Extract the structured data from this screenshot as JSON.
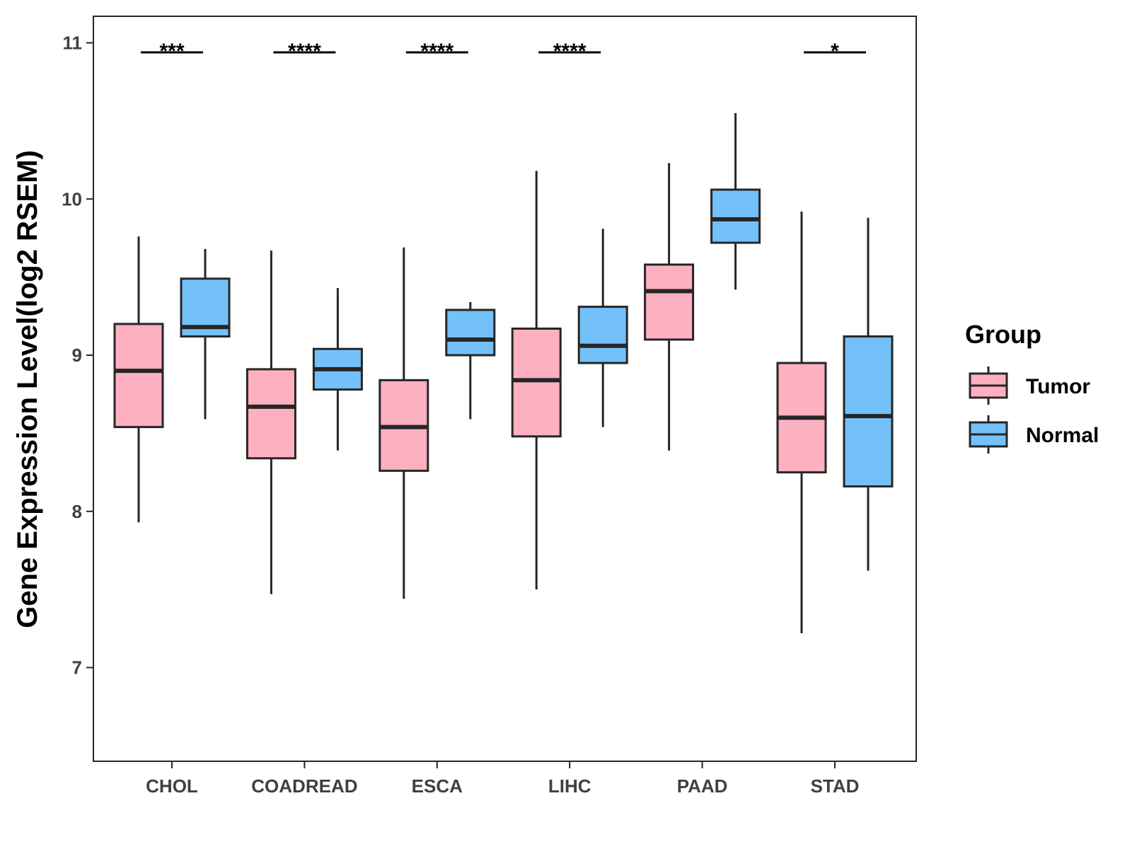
{
  "chart_data": {
    "type": "boxplot",
    "title": "",
    "xlabel": "",
    "ylabel": "Gene Expression Level(log2 RSEM)",
    "ylim": [
      6.4,
      11.17
    ],
    "yticks": [
      7,
      8,
      9,
      10,
      11
    ],
    "categories": [
      "CHOL",
      "COADREAD",
      "ESCA",
      "LIHC",
      "PAAD",
      "STAD"
    ],
    "legend": {
      "title": "Group",
      "position": "right",
      "entries": [
        {
          "name": "Tumor",
          "color": "#FDB0C0"
        },
        {
          "name": "Normal",
          "color": "#74C1F9"
        }
      ]
    },
    "series": [
      {
        "name": "Tumor",
        "color": "#FDB0C0",
        "boxes": [
          {
            "min": 7.93,
            "q1": 8.54,
            "median": 8.9,
            "q3": 9.2,
            "max": 9.76
          },
          {
            "min": 7.47,
            "q1": 8.34,
            "median": 8.67,
            "q3": 8.91,
            "max": 9.67
          },
          {
            "min": 7.44,
            "q1": 8.26,
            "median": 8.54,
            "q3": 8.84,
            "max": 9.69
          },
          {
            "min": 7.5,
            "q1": 8.48,
            "median": 8.84,
            "q3": 9.17,
            "max": 10.18
          },
          {
            "min": 8.39,
            "q1": 9.1,
            "median": 9.41,
            "q3": 9.58,
            "max": 10.23
          },
          {
            "min": 7.22,
            "q1": 8.25,
            "median": 8.6,
            "q3": 8.95,
            "max": 9.92
          }
        ]
      },
      {
        "name": "Normal",
        "color": "#74C1F9",
        "boxes": [
          {
            "min": 8.59,
            "q1": 9.12,
            "median": 9.18,
            "q3": 9.49,
            "max": 9.68
          },
          {
            "min": 8.39,
            "q1": 8.78,
            "median": 8.91,
            "q3": 9.04,
            "max": 9.43
          },
          {
            "min": 8.59,
            "q1": 9.0,
            "median": 9.1,
            "q3": 9.29,
            "max": 9.34
          },
          {
            "min": 8.54,
            "q1": 8.95,
            "median": 9.06,
            "q3": 9.31,
            "max": 9.81
          },
          {
            "min": 9.42,
            "q1": 9.72,
            "median": 9.87,
            "q3": 10.06,
            "max": 10.55
          },
          {
            "min": 7.62,
            "q1": 8.16,
            "median": 8.61,
            "q3": 9.12,
            "max": 9.88
          }
        ]
      }
    ],
    "significance": [
      {
        "category": "CHOL",
        "label": "***"
      },
      {
        "category": "COADREAD",
        "label": "****"
      },
      {
        "category": "ESCA",
        "label": "****"
      },
      {
        "category": "LIHC",
        "label": "****"
      },
      {
        "category": "PAAD",
        "label": ""
      },
      {
        "category": "STAD",
        "label": "*"
      }
    ],
    "colors": {
      "box_stroke": "#262626",
      "axis": "#262626",
      "tick_text": "#404040"
    }
  }
}
